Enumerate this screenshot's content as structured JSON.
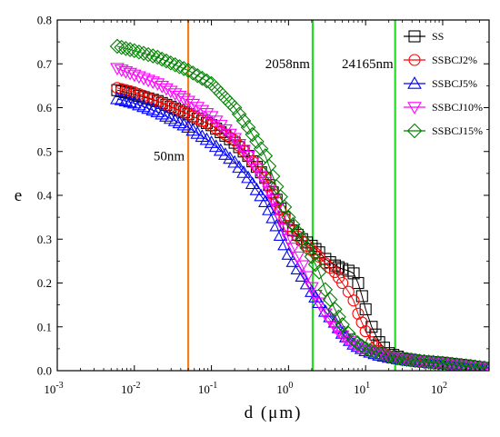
{
  "chart_data": {
    "type": "scatter",
    "xlabel": "d (μm)",
    "ylabel": "e",
    "xscale": "log",
    "xlim": [
      0.001,
      400
    ],
    "ylim": [
      0,
      0.8
    ],
    "x_tick_values": [
      0.001,
      0.01,
      0.1,
      1,
      10,
      100
    ],
    "x_tick_labels": [
      {
        "base": "10",
        "exp": "-3"
      },
      {
        "base": "10",
        "exp": "-2"
      },
      {
        "base": "10",
        "exp": "-1"
      },
      {
        "base": "10",
        "exp": "0"
      },
      {
        "base": "10",
        "exp": "1"
      },
      {
        "base": "10",
        "exp": "2"
      }
    ],
    "y_ticks": [
      0,
      0.1,
      0.2,
      0.3,
      0.4,
      0.5,
      0.6,
      0.7,
      0.8
    ],
    "y_tick_labels": [
      "0.0",
      "0.1",
      "0.2",
      "0.3",
      "0.4",
      "0.5",
      "0.6",
      "0.7",
      "0.8"
    ],
    "grid": false,
    "legend_position": "top-right",
    "vertical_lines": [
      {
        "x": 0.05,
        "label": "50nm",
        "label_y": 0.48,
        "color": "#f07f1f"
      },
      {
        "x": 2.058,
        "label": "2058nm",
        "label_y": 0.69,
        "color": "#22dd22"
      },
      {
        "x": 24.165,
        "label": "24165nm",
        "label_y": 0.69,
        "color": "#22dd22"
      }
    ],
    "series": [
      {
        "name": "SS",
        "color": "#000000",
        "marker": "square",
        "x": [
          0.006,
          0.01,
          0.02,
          0.05,
          0.1,
          0.2,
          0.3,
          0.5,
          0.7,
          1.0,
          1.5,
          2.0,
          2.5,
          3.0,
          4.0,
          5.0,
          6.0,
          7.0,
          8.0,
          9.0,
          10.0,
          12.0,
          15.0,
          20.0,
          30.0,
          50.0,
          100.0,
          200.0,
          400.0
        ],
        "y": [
          0.64,
          0.63,
          0.615,
          0.585,
          0.56,
          0.52,
          0.49,
          0.44,
          0.39,
          0.33,
          0.3,
          0.285,
          0.27,
          0.255,
          0.24,
          0.232,
          0.228,
          0.222,
          0.2,
          0.17,
          0.14,
          0.1,
          0.065,
          0.04,
          0.028,
          0.022,
          0.018,
          0.012,
          0.005
        ]
      },
      {
        "name": "SSBCJ2%",
        "color": "#ff0000",
        "marker": "circle",
        "x": [
          0.006,
          0.01,
          0.02,
          0.05,
          0.1,
          0.2,
          0.3,
          0.5,
          0.7,
          1.0,
          1.5,
          2.0,
          2.5,
          3.0,
          4.0,
          5.0,
          6.0,
          7.0,
          8.0,
          10.0,
          12.0,
          15.0,
          20.0,
          30.0,
          50.0,
          100.0,
          200.0,
          400.0
        ],
        "y": [
          0.645,
          0.635,
          0.615,
          0.585,
          0.56,
          0.525,
          0.49,
          0.44,
          0.385,
          0.33,
          0.295,
          0.275,
          0.26,
          0.245,
          0.225,
          0.2,
          0.18,
          0.16,
          0.13,
          0.09,
          0.065,
          0.045,
          0.033,
          0.025,
          0.02,
          0.016,
          0.01,
          0.005
        ]
      },
      {
        "name": "SSBCJ5%",
        "color": "#0000ff",
        "marker": "triangle-up",
        "x": [
          0.006,
          0.01,
          0.02,
          0.05,
          0.1,
          0.2,
          0.3,
          0.5,
          0.7,
          1.0,
          1.5,
          2.0,
          2.5,
          3.0,
          4.0,
          5.0,
          7.0,
          10.0,
          15.0,
          20.0,
          30.0,
          50.0,
          100.0,
          200.0,
          400.0
        ],
        "y": [
          0.62,
          0.61,
          0.59,
          0.555,
          0.52,
          0.475,
          0.44,
          0.385,
          0.33,
          0.265,
          0.215,
          0.18,
          0.155,
          0.135,
          0.11,
          0.085,
          0.06,
          0.045,
          0.035,
          0.03,
          0.025,
          0.02,
          0.016,
          0.01,
          0.005
        ]
      },
      {
        "name": "SSBCJ10%",
        "color": "#ff00ff",
        "marker": "triangle-down",
        "x": [
          0.006,
          0.01,
          0.02,
          0.05,
          0.1,
          0.2,
          0.3,
          0.5,
          0.7,
          1.0,
          1.5,
          2.0,
          2.5,
          3.0,
          4.0,
          5.0,
          7.0,
          10.0,
          15.0,
          20.0,
          30.0,
          50.0,
          100.0,
          200.0,
          400.0
        ],
        "y": [
          0.69,
          0.675,
          0.655,
          0.615,
          0.58,
          0.53,
          0.49,
          0.43,
          0.37,
          0.3,
          0.24,
          0.19,
          0.155,
          0.13,
          0.1,
          0.08,
          0.06,
          0.048,
          0.038,
          0.032,
          0.026,
          0.021,
          0.017,
          0.011,
          0.005
        ]
      },
      {
        "name": "SSBCJ15%",
        "color": "#008000",
        "marker": "diamond",
        "x": [
          0.006,
          0.01,
          0.02,
          0.05,
          0.1,
          0.2,
          0.3,
          0.5,
          0.7,
          1.0,
          1.5,
          2.0,
          2.5,
          3.0,
          4.0,
          5.0,
          6.0,
          7.0,
          10.0,
          15.0,
          20.0,
          30.0,
          50.0,
          100.0,
          200.0,
          400.0
        ],
        "y": [
          0.74,
          0.73,
          0.715,
          0.685,
          0.655,
          0.6,
          0.555,
          0.49,
          0.42,
          0.35,
          0.3,
          0.26,
          0.225,
          0.185,
          0.14,
          0.105,
          0.085,
          0.07,
          0.05,
          0.04,
          0.033,
          0.027,
          0.022,
          0.017,
          0.011,
          0.005
        ]
      }
    ]
  }
}
